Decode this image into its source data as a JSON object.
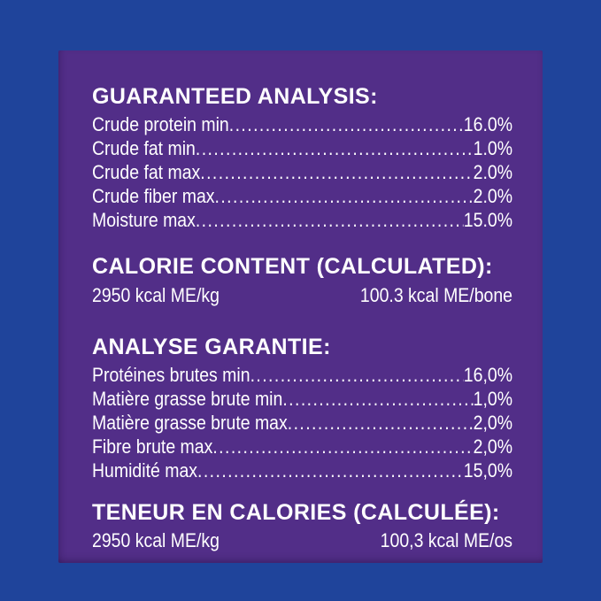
{
  "colors": {
    "background_blue": "#1f449b",
    "panel_purple": "#522e88",
    "text_white": "#ffffff"
  },
  "guaranteed_analysis": {
    "heading": "GUARANTEED ANALYSIS:",
    "rows": [
      {
        "label": "Crude protein min",
        "value": "16.0%"
      },
      {
        "label": "Crude fat min",
        "value": "1.0%"
      },
      {
        "label": "Crude fat max",
        "value": "2.0%"
      },
      {
        "label": "Crude fiber max",
        "value": "2.0%"
      },
      {
        "label": "Moisture max",
        "value": "15.0%"
      }
    ]
  },
  "calorie_content": {
    "heading": "CALORIE CONTENT (CALCULATED):",
    "per_kg": "2950 kcal ME/kg",
    "per_unit": "100.3 kcal ME/bone"
  },
  "analyse_garantie": {
    "heading": "ANALYSE GARANTIE:",
    "rows": [
      {
        "label": "Protéines brutes min",
        "value": "16,0%"
      },
      {
        "label": "Matière grasse brute min",
        "value": "1,0%"
      },
      {
        "label": "Matière grasse brute max",
        "value": "2,0%"
      },
      {
        "label": "Fibre brute max",
        "value": "2,0%"
      },
      {
        "label": "Humidité max",
        "value": "15,0%"
      }
    ]
  },
  "teneur_calories": {
    "heading": "TENEUR EN CALORIES (CALCULÉE):",
    "per_kg": "2950 kcal ME/kg",
    "per_unit": "100,3 kcal ME/os"
  }
}
